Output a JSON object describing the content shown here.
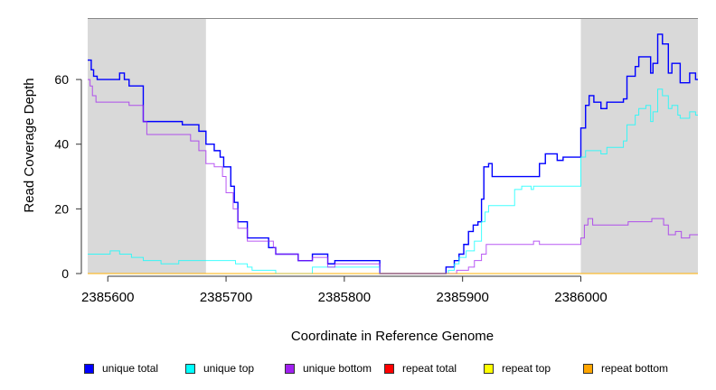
{
  "chart_data": {
    "type": "line",
    "xlabel": "Coordinate in Reference Genome",
    "ylabel": "Read Coverage Depth",
    "xlim": [
      2385583,
      2386099
    ],
    "ylim": [
      0,
      79
    ],
    "xticks": [
      2385600,
      2385700,
      2385800,
      2385900,
      2386000
    ],
    "yticks": [
      0,
      20,
      40,
      60
    ],
    "shaded_regions": [
      [
        2385583,
        2385683
      ],
      [
        2386000,
        2386099
      ]
    ],
    "legend_position": "bottom",
    "series": [
      {
        "name": "unique total",
        "color": "#0000ff",
        "points": [
          [
            2385583,
            66
          ],
          [
            2385586,
            63
          ],
          [
            2385588,
            61
          ],
          [
            2385591,
            60
          ],
          [
            2385610,
            62
          ],
          [
            2385614,
            60
          ],
          [
            2385618,
            58
          ],
          [
            2385630,
            47
          ],
          [
            2385663,
            46
          ],
          [
            2385677,
            44
          ],
          [
            2385683,
            40
          ],
          [
            2385690,
            38
          ],
          [
            2385695,
            36
          ],
          [
            2385698,
            33
          ],
          [
            2385704,
            27
          ],
          [
            2385707,
            22
          ],
          [
            2385710,
            16
          ],
          [
            2385718,
            11
          ],
          [
            2385736,
            8
          ],
          [
            2385742,
            6
          ],
          [
            2385761,
            4
          ],
          [
            2385773,
            6
          ],
          [
            2385786,
            3
          ],
          [
            2385792,
            4
          ],
          [
            2385830,
            0
          ],
          [
            2385886,
            2
          ],
          [
            2385893,
            4
          ],
          [
            2385897,
            6
          ],
          [
            2385901,
            9
          ],
          [
            2385905,
            13
          ],
          [
            2385909,
            15
          ],
          [
            2385913,
            16
          ],
          [
            2385916,
            23
          ],
          [
            2385918,
            33
          ],
          [
            2385922,
            34
          ],
          [
            2385925,
            30
          ],
          [
            2385965,
            34
          ],
          [
            2385970,
            37
          ],
          [
            2385980,
            35
          ],
          [
            2385985,
            36
          ],
          [
            2386000,
            45
          ],
          [
            2386004,
            52
          ],
          [
            2386007,
            55
          ],
          [
            2386011,
            53
          ],
          [
            2386017,
            51
          ],
          [
            2386022,
            53
          ],
          [
            2386036,
            54
          ],
          [
            2386039,
            61
          ],
          [
            2386046,
            64
          ],
          [
            2386049,
            67
          ],
          [
            2386059,
            62
          ],
          [
            2386061,
            65
          ],
          [
            2386065,
            74
          ],
          [
            2386069,
            71
          ],
          [
            2386074,
            62
          ],
          [
            2386077,
            65
          ],
          [
            2386084,
            59
          ],
          [
            2386092,
            62
          ],
          [
            2386097,
            60
          ],
          [
            2386099,
            60
          ]
        ]
      },
      {
        "name": "unique top",
        "color": "#00ffff",
        "points": [
          [
            2385583,
            6
          ],
          [
            2385602,
            7
          ],
          [
            2385610,
            6
          ],
          [
            2385620,
            5
          ],
          [
            2385630,
            4
          ],
          [
            2385645,
            3
          ],
          [
            2385656,
            3
          ],
          [
            2385660,
            4
          ],
          [
            2385708,
            3
          ],
          [
            2385718,
            2
          ],
          [
            2385722,
            1
          ],
          [
            2385742,
            0
          ],
          [
            2385773,
            2
          ],
          [
            2385830,
            0
          ],
          [
            2385888,
            1
          ],
          [
            2385893,
            3
          ],
          [
            2385897,
            5
          ],
          [
            2385903,
            7
          ],
          [
            2385910,
            10
          ],
          [
            2385916,
            16
          ],
          [
            2385919,
            19
          ],
          [
            2385922,
            21
          ],
          [
            2385944,
            26
          ],
          [
            2385950,
            27
          ],
          [
            2385958,
            26
          ],
          [
            2385960,
            27
          ],
          [
            2386000,
            36
          ],
          [
            2386004,
            38
          ],
          [
            2386017,
            37
          ],
          [
            2386022,
            39
          ],
          [
            2386036,
            41
          ],
          [
            2386039,
            46
          ],
          [
            2386046,
            49
          ],
          [
            2386049,
            51
          ],
          [
            2386055,
            52
          ],
          [
            2386059,
            47
          ],
          [
            2386061,
            50
          ],
          [
            2386065,
            57
          ],
          [
            2386069,
            55
          ],
          [
            2386074,
            51
          ],
          [
            2386077,
            52
          ],
          [
            2386082,
            49
          ],
          [
            2386084,
            48
          ],
          [
            2386092,
            50
          ],
          [
            2386097,
            49
          ],
          [
            2386099,
            49
          ]
        ]
      },
      {
        "name": "unique bottom",
        "color": "#a020f0",
        "points": [
          [
            2385583,
            60
          ],
          [
            2385585,
            58
          ],
          [
            2385587,
            55
          ],
          [
            2385590,
            53
          ],
          [
            2385618,
            52
          ],
          [
            2385630,
            47
          ],
          [
            2385633,
            43
          ],
          [
            2385670,
            41
          ],
          [
            2385677,
            38
          ],
          [
            2385683,
            34
          ],
          [
            2385690,
            33
          ],
          [
            2385697,
            30
          ],
          [
            2385700,
            25
          ],
          [
            2385706,
            20
          ],
          [
            2385710,
            14
          ],
          [
            2385718,
            10
          ],
          [
            2385740,
            8
          ],
          [
            2385742,
            6
          ],
          [
            2385761,
            4
          ],
          [
            2385773,
            5
          ],
          [
            2385786,
            2
          ],
          [
            2385792,
            3
          ],
          [
            2385830,
            0
          ],
          [
            2385895,
            1
          ],
          [
            2385905,
            2
          ],
          [
            2385910,
            4
          ],
          [
            2385916,
            6
          ],
          [
            2385920,
            9
          ],
          [
            2385960,
            10
          ],
          [
            2385965,
            9
          ],
          [
            2386000,
            11
          ],
          [
            2386003,
            15
          ],
          [
            2386006,
            17
          ],
          [
            2386010,
            15
          ],
          [
            2386040,
            16
          ],
          [
            2386060,
            17
          ],
          [
            2386070,
            15
          ],
          [
            2386074,
            12
          ],
          [
            2386080,
            13
          ],
          [
            2386085,
            11
          ],
          [
            2386092,
            12
          ],
          [
            2386099,
            12
          ]
        ]
      },
      {
        "name": "repeat total",
        "color": "#ff0000",
        "points": [
          [
            2385583,
            0
          ],
          [
            2386099,
            0
          ]
        ]
      },
      {
        "name": "repeat top",
        "color": "#ffff00",
        "points": [
          [
            2385583,
            0
          ],
          [
            2386099,
            0
          ]
        ]
      },
      {
        "name": "repeat bottom",
        "color": "#ffa500",
        "points": [
          [
            2385583,
            0
          ],
          [
            2386099,
            0
          ]
        ]
      }
    ]
  }
}
